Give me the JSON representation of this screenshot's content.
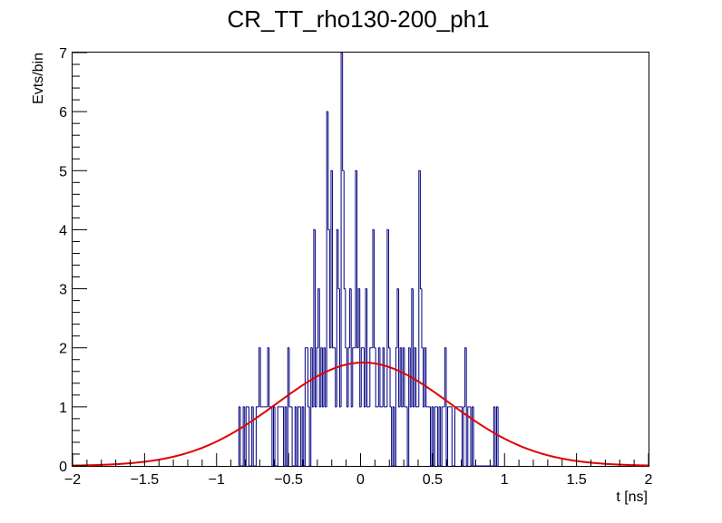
{
  "chart_data": {
    "type": "histogram",
    "title": "CR_TT_rho130-200_ph1",
    "xlabel": "t [ns]",
    "ylabel": "Evts/bin",
    "xlim": [
      -2,
      2
    ],
    "ylim": [
      0,
      7
    ],
    "xticks": [
      -2,
      -1.5,
      -1,
      -0.5,
      0,
      0.5,
      1,
      1.5,
      2
    ],
    "xtick_labels": [
      "−2",
      "−1.5",
      "−1",
      "−0.5",
      "0",
      "0.5",
      "1",
      "1.5",
      "2"
    ],
    "yticks": [
      0,
      1,
      2,
      3,
      4,
      5,
      6,
      7
    ],
    "ytick_labels": [
      "0",
      "1",
      "2",
      "3",
      "4",
      "5",
      "6",
      "7"
    ],
    "bin_width": 0.01,
    "histogram_color": "#000080",
    "fit_color": "#e00000",
    "bins": [
      {
        "x": -0.84,
        "y": 1
      },
      {
        "x": -0.83,
        "y": 0
      },
      {
        "x": -0.82,
        "y": 0
      },
      {
        "x": -0.81,
        "y": 1
      },
      {
        "x": -0.8,
        "y": 0
      },
      {
        "x": -0.79,
        "y": 1
      },
      {
        "x": -0.78,
        "y": 1
      },
      {
        "x": -0.77,
        "y": 0
      },
      {
        "x": -0.76,
        "y": 0
      },
      {
        "x": -0.75,
        "y": 1
      },
      {
        "x": -0.74,
        "y": 0
      },
      {
        "x": -0.73,
        "y": 0
      },
      {
        "x": -0.72,
        "y": 1
      },
      {
        "x": -0.71,
        "y": 1
      },
      {
        "x": -0.7,
        "y": 2
      },
      {
        "x": -0.69,
        "y": 1
      },
      {
        "x": -0.68,
        "y": 1
      },
      {
        "x": -0.67,
        "y": 1
      },
      {
        "x": -0.66,
        "y": 1
      },
      {
        "x": -0.65,
        "y": 1
      },
      {
        "x": -0.64,
        "y": 2
      },
      {
        "x": -0.63,
        "y": 1
      },
      {
        "x": -0.62,
        "y": 1
      },
      {
        "x": -0.61,
        "y": 0
      },
      {
        "x": -0.6,
        "y": 1
      },
      {
        "x": -0.59,
        "y": 0
      },
      {
        "x": -0.58,
        "y": 0
      },
      {
        "x": -0.57,
        "y": 1
      },
      {
        "x": -0.56,
        "y": 1
      },
      {
        "x": -0.55,
        "y": 1
      },
      {
        "x": -0.54,
        "y": 1
      },
      {
        "x": -0.53,
        "y": 0
      },
      {
        "x": -0.52,
        "y": 1
      },
      {
        "x": -0.51,
        "y": 0
      },
      {
        "x": -0.5,
        "y": 2
      },
      {
        "x": -0.49,
        "y": 1
      },
      {
        "x": -0.48,
        "y": 1
      },
      {
        "x": -0.47,
        "y": 0
      },
      {
        "x": -0.46,
        "y": 0
      },
      {
        "x": -0.45,
        "y": 1
      },
      {
        "x": -0.44,
        "y": 0
      },
      {
        "x": -0.43,
        "y": 1
      },
      {
        "x": -0.42,
        "y": 1
      },
      {
        "x": -0.41,
        "y": 0
      },
      {
        "x": -0.4,
        "y": 1
      },
      {
        "x": -0.39,
        "y": 0
      },
      {
        "x": -0.38,
        "y": 2
      },
      {
        "x": -0.37,
        "y": 2
      },
      {
        "x": -0.36,
        "y": 1
      },
      {
        "x": -0.35,
        "y": 0
      },
      {
        "x": -0.34,
        "y": 2
      },
      {
        "x": -0.33,
        "y": 1
      },
      {
        "x": -0.32,
        "y": 4
      },
      {
        "x": -0.31,
        "y": 1
      },
      {
        "x": -0.3,
        "y": 2
      },
      {
        "x": -0.29,
        "y": 3
      },
      {
        "x": -0.28,
        "y": 1
      },
      {
        "x": -0.27,
        "y": 2
      },
      {
        "x": -0.26,
        "y": 1
      },
      {
        "x": -0.25,
        "y": 2
      },
      {
        "x": -0.24,
        "y": 1
      },
      {
        "x": -0.23,
        "y": 6
      },
      {
        "x": -0.22,
        "y": 4
      },
      {
        "x": -0.21,
        "y": 2
      },
      {
        "x": -0.2,
        "y": 5
      },
      {
        "x": -0.19,
        "y": 2
      },
      {
        "x": -0.18,
        "y": 2
      },
      {
        "x": -0.17,
        "y": 1
      },
      {
        "x": -0.16,
        "y": 4
      },
      {
        "x": -0.15,
        "y": 3
      },
      {
        "x": -0.14,
        "y": 1
      },
      {
        "x": -0.13,
        "y": 7
      },
      {
        "x": -0.12,
        "y": 5
      },
      {
        "x": -0.11,
        "y": 3
      },
      {
        "x": -0.1,
        "y": 2
      },
      {
        "x": -0.09,
        "y": 1
      },
      {
        "x": -0.08,
        "y": 2
      },
      {
        "x": -0.07,
        "y": 3
      },
      {
        "x": -0.06,
        "y": 1
      },
      {
        "x": -0.05,
        "y": 2
      },
      {
        "x": -0.04,
        "y": 2
      },
      {
        "x": -0.03,
        "y": 5
      },
      {
        "x": -0.02,
        "y": 2
      },
      {
        "x": -0.01,
        "y": 3
      },
      {
        "x": 0.0,
        "y": 1
      },
      {
        "x": 0.01,
        "y": 2
      },
      {
        "x": 0.02,
        "y": 2
      },
      {
        "x": 0.03,
        "y": 1
      },
      {
        "x": 0.04,
        "y": 3
      },
      {
        "x": 0.05,
        "y": 1
      },
      {
        "x": 0.06,
        "y": 1
      },
      {
        "x": 0.07,
        "y": 2
      },
      {
        "x": 0.08,
        "y": 2
      },
      {
        "x": 0.09,
        "y": 4
      },
      {
        "x": 0.1,
        "y": 2
      },
      {
        "x": 0.11,
        "y": 1
      },
      {
        "x": 0.12,
        "y": 1
      },
      {
        "x": 0.13,
        "y": 2
      },
      {
        "x": 0.14,
        "y": 1
      },
      {
        "x": 0.15,
        "y": 1
      },
      {
        "x": 0.16,
        "y": 2
      },
      {
        "x": 0.17,
        "y": 1
      },
      {
        "x": 0.18,
        "y": 1
      },
      {
        "x": 0.19,
        "y": 4
      },
      {
        "x": 0.2,
        "y": 2
      },
      {
        "x": 0.21,
        "y": 1
      },
      {
        "x": 0.22,
        "y": 0
      },
      {
        "x": 0.23,
        "y": 1
      },
      {
        "x": 0.24,
        "y": 0
      },
      {
        "x": 0.25,
        "y": 2
      },
      {
        "x": 0.26,
        "y": 3
      },
      {
        "x": 0.27,
        "y": 1
      },
      {
        "x": 0.28,
        "y": 2
      },
      {
        "x": 0.29,
        "y": 1
      },
      {
        "x": 0.3,
        "y": 2
      },
      {
        "x": 0.31,
        "y": 1
      },
      {
        "x": 0.32,
        "y": 1
      },
      {
        "x": 0.33,
        "y": 0
      },
      {
        "x": 0.34,
        "y": 2
      },
      {
        "x": 0.35,
        "y": 1
      },
      {
        "x": 0.36,
        "y": 3
      },
      {
        "x": 0.37,
        "y": 1
      },
      {
        "x": 0.38,
        "y": 2
      },
      {
        "x": 0.39,
        "y": 1
      },
      {
        "x": 0.4,
        "y": 1
      },
      {
        "x": 0.41,
        "y": 5
      },
      {
        "x": 0.42,
        "y": 3
      },
      {
        "x": 0.43,
        "y": 2
      },
      {
        "x": 0.44,
        "y": 1
      },
      {
        "x": 0.45,
        "y": 2
      },
      {
        "x": 0.46,
        "y": 1
      },
      {
        "x": 0.47,
        "y": 1
      },
      {
        "x": 0.48,
        "y": 1
      },
      {
        "x": 0.49,
        "y": 0
      },
      {
        "x": 0.5,
        "y": 1
      },
      {
        "x": 0.51,
        "y": 0
      },
      {
        "x": 0.52,
        "y": 1
      },
      {
        "x": 0.53,
        "y": 1
      },
      {
        "x": 0.54,
        "y": 0
      },
      {
        "x": 0.55,
        "y": 1
      },
      {
        "x": 0.56,
        "y": 0
      },
      {
        "x": 0.57,
        "y": 1
      },
      {
        "x": 0.58,
        "y": 1
      },
      {
        "x": 0.59,
        "y": 2
      },
      {
        "x": 0.6,
        "y": 0
      },
      {
        "x": 0.61,
        "y": 1
      },
      {
        "x": 0.62,
        "y": 1
      },
      {
        "x": 0.63,
        "y": 1
      },
      {
        "x": 0.64,
        "y": 0
      },
      {
        "x": 0.65,
        "y": 0
      },
      {
        "x": 0.66,
        "y": 1
      },
      {
        "x": 0.67,
        "y": 1
      },
      {
        "x": 0.68,
        "y": 1
      },
      {
        "x": 0.69,
        "y": 1
      },
      {
        "x": 0.7,
        "y": 1
      },
      {
        "x": 0.71,
        "y": 0
      },
      {
        "x": 0.72,
        "y": 1
      },
      {
        "x": 0.73,
        "y": 2
      },
      {
        "x": 0.74,
        "y": 0
      },
      {
        "x": 0.75,
        "y": 1
      },
      {
        "x": 0.76,
        "y": 1
      },
      {
        "x": 0.77,
        "y": 0
      },
      {
        "x": 0.78,
        "y": 1
      },
      {
        "x": 0.79,
        "y": 0
      },
      {
        "x": 0.8,
        "y": 0
      },
      {
        "x": 0.81,
        "y": 0
      },
      {
        "x": 0.82,
        "y": 0
      },
      {
        "x": 0.83,
        "y": 0
      },
      {
        "x": 0.84,
        "y": 0
      },
      {
        "x": 0.85,
        "y": 0
      },
      {
        "x": 0.86,
        "y": 0
      },
      {
        "x": 0.87,
        "y": 0
      },
      {
        "x": 0.88,
        "y": 0
      },
      {
        "x": 0.89,
        "y": 0
      },
      {
        "x": 0.9,
        "y": 0
      },
      {
        "x": 0.91,
        "y": 0
      },
      {
        "x": 0.92,
        "y": 0
      },
      {
        "x": 0.93,
        "y": 1
      },
      {
        "x": 0.94,
        "y": 0
      },
      {
        "x": 0.95,
        "y": 1
      }
    ],
    "fit": {
      "function": "gaussian",
      "amplitude": 1.75,
      "mean": 0.02,
      "sigma": 0.6,
      "x_range": [
        -2,
        2
      ]
    }
  }
}
